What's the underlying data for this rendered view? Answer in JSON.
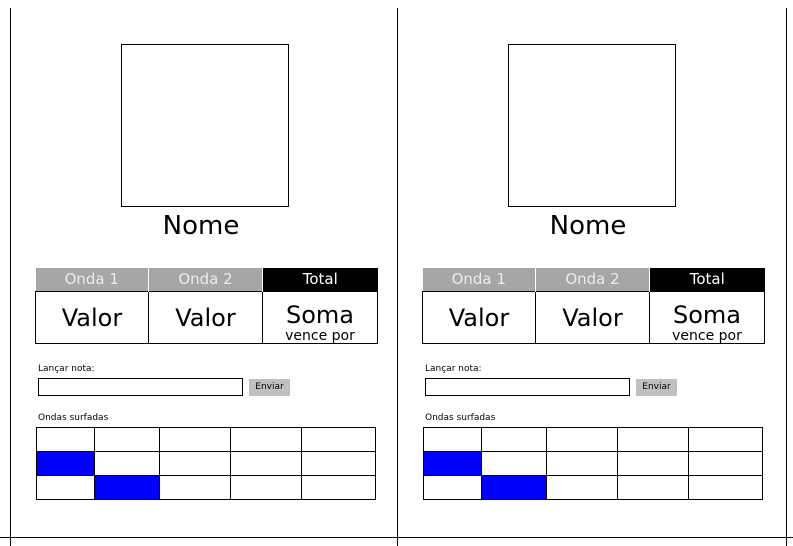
{
  "panels": [
    {
      "name": "Nome",
      "headers": {
        "wave1": "Onda 1",
        "wave2": "Onda 2",
        "total": "Total"
      },
      "values": {
        "wave1": "Valor",
        "wave2": "Valor",
        "total": "Soma",
        "total_sub": "vence por"
      },
      "launch": {
        "label": "Lançar nota:",
        "value": "",
        "placeholder": "",
        "button": "Enviar"
      },
      "waves_label": "Ondas surfadas",
      "waves_grid": [
        [
          false,
          false,
          false,
          false,
          false
        ],
        [
          true,
          false,
          false,
          false,
          false
        ],
        [
          false,
          true,
          false,
          false,
          false
        ]
      ]
    },
    {
      "name": "Nome",
      "headers": {
        "wave1": "Onda 1",
        "wave2": "Onda 2",
        "total": "Total"
      },
      "values": {
        "wave1": "Valor",
        "wave2": "Valor",
        "total": "Soma",
        "total_sub": "vence por"
      },
      "launch": {
        "label": "Lançar nota:",
        "value": "",
        "placeholder": "",
        "button": "Enviar"
      },
      "waves_label": "Ondas surfadas",
      "waves_grid": [
        [
          false,
          false,
          false,
          false,
          false
        ],
        [
          true,
          false,
          false,
          false,
          false
        ],
        [
          false,
          true,
          false,
          false,
          false
        ]
      ]
    }
  ],
  "colors": {
    "header_wave_bg": "#a6a6a6",
    "header_total_bg": "#000000",
    "wave_marked": "#0000ff",
    "button_bg": "#c0c0c0"
  }
}
